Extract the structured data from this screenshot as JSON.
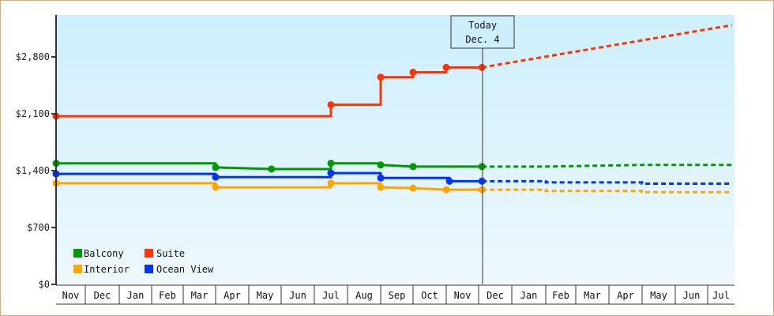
{
  "chart_data": {
    "type": "line",
    "title": "",
    "xlabel": "",
    "ylabel": "",
    "ylim": [
      0,
      3300
    ],
    "y_ticks": [
      "$0",
      "$700",
      "$1,400",
      "$2,100",
      "$2,800"
    ],
    "y_tick_values": [
      0,
      700,
      1400,
      2100,
      2800
    ],
    "categories": [
      "Nov",
      "Dec",
      "Jan",
      "Feb",
      "Mar",
      "Apr",
      "May",
      "Jun",
      "Jul",
      "Aug",
      "Sep",
      "Oct",
      "Nov",
      "Dec",
      "Jan",
      "Feb",
      "Mar",
      "Apr",
      "May",
      "Jun",
      "Jul"
    ],
    "grid": false,
    "legend_position": "lower-left inside",
    "marker": {
      "label_line1": "Today",
      "label_line2": "Dec. 4"
    },
    "series": [
      {
        "name": "Balcony",
        "color": "#009900",
        "history": [
          [
            0,
            1490
          ],
          [
            5,
            1490
          ],
          [
            5,
            1440
          ],
          [
            6.7,
            1420
          ],
          [
            8.5,
            1420
          ],
          [
            8.5,
            1490
          ],
          [
            10,
            1490
          ],
          [
            10,
            1470
          ],
          [
            11,
            1450
          ],
          [
            13.1,
            1450
          ]
        ],
        "forecast": [
          [
            13.1,
            1450
          ],
          [
            15,
            1450
          ],
          [
            18,
            1470
          ],
          [
            20.9,
            1470
          ]
        ]
      },
      {
        "name": "Suite",
        "color": "#ff3300",
        "history": [
          [
            0,
            2070
          ],
          [
            5,
            2070
          ],
          [
            8.5,
            2070
          ],
          [
            8.5,
            2210
          ],
          [
            10,
            2210
          ],
          [
            10,
            2550
          ],
          [
            11,
            2550
          ],
          [
            11,
            2610
          ],
          [
            12,
            2610
          ],
          [
            12,
            2670
          ],
          [
            13.1,
            2670
          ]
        ],
        "forecast": [
          [
            13.1,
            2670
          ],
          [
            20.9,
            3190
          ]
        ]
      },
      {
        "name": "Interior",
        "color": "#ffa500",
        "history": [
          [
            0,
            1245
          ],
          [
            5,
            1245
          ],
          [
            5,
            1195
          ],
          [
            8.5,
            1195
          ],
          [
            8.5,
            1245
          ],
          [
            10,
            1245
          ],
          [
            10,
            1195
          ],
          [
            11,
            1185
          ],
          [
            12,
            1165
          ],
          [
            13.1,
            1165
          ]
        ],
        "forecast": [
          [
            13.1,
            1165
          ],
          [
            15,
            1165
          ],
          [
            15,
            1150
          ],
          [
            18,
            1150
          ],
          [
            18,
            1135
          ],
          [
            20.9,
            1135
          ]
        ]
      },
      {
        "name": "Ocean View",
        "color": "#0033ff",
        "history": [
          [
            0,
            1360
          ],
          [
            5,
            1360
          ],
          [
            5,
            1320
          ],
          [
            8.5,
            1320
          ],
          [
            8.5,
            1370
          ],
          [
            10,
            1370
          ],
          [
            10,
            1310
          ],
          [
            12.1,
            1310
          ],
          [
            12.1,
            1270
          ],
          [
            13.1,
            1270
          ]
        ],
        "forecast": [
          [
            13.1,
            1270
          ],
          [
            15,
            1270
          ],
          [
            15,
            1255
          ],
          [
            18,
            1255
          ],
          [
            18,
            1240
          ],
          [
            20.9,
            1240
          ]
        ]
      }
    ]
  },
  "legend": [
    {
      "label": "Balcony",
      "color": "#009900"
    },
    {
      "label": "Suite",
      "color": "#ff3300"
    },
    {
      "label": "Interior",
      "color": "#ffa500"
    },
    {
      "label": "Ocean View",
      "color": "#0033ff"
    }
  ],
  "today": {
    "line1": "Today",
    "line2": "Dec. 4"
  },
  "x_labels": [
    "Nov",
    "Dec",
    "Jan",
    "Feb",
    "Mar",
    "Apr",
    "May",
    "Jun",
    "Jul",
    "Aug",
    "Sep",
    "Oct",
    "Nov",
    "Dec",
    "Jan",
    "Feb",
    "Mar",
    "Apr",
    "May",
    "Jun",
    "Jul"
  ],
  "y_labels": [
    "$0",
    "$700",
    "$1,400",
    "$2,100",
    "$2,800"
  ]
}
